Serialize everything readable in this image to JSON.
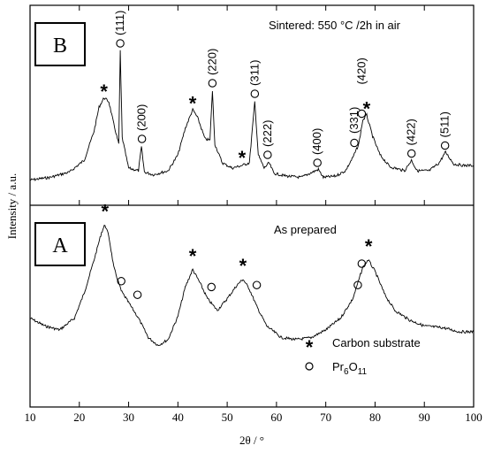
{
  "chart_data": {
    "type": "line",
    "xlabel": "2θ / °",
    "ylabel": "Intensity / a.u.",
    "xlim": [
      10,
      100
    ],
    "x_ticks": [
      10,
      20,
      30,
      40,
      50,
      60,
      70,
      80,
      90,
      100
    ],
    "panels": [
      {
        "id": "B",
        "letter": "B",
        "annotation": "Sintered: 550 °C /2h in air",
        "series": [
          {
            "points": [
              [
                10,
                0.03
              ],
              [
                14,
                0.05
              ],
              [
                18,
                0.09
              ],
              [
                21,
                0.18
              ],
              [
                23,
                0.4
              ],
              [
                24,
                0.58
              ],
              [
                25,
                0.65
              ],
              [
                26,
                0.62
              ],
              [
                27,
                0.45
              ],
              [
                28.0,
                0.3
              ],
              [
                28.3,
                1.0
              ],
              [
                28.7,
                0.35
              ],
              [
                30,
                0.12
              ],
              [
                32,
                0.1
              ],
              [
                32.6,
                0.28
              ],
              [
                33.2,
                0.09
              ],
              [
                35,
                0.07
              ],
              [
                38,
                0.1
              ],
              [
                40,
                0.22
              ],
              [
                41.5,
                0.42
              ],
              [
                43,
                0.56
              ],
              [
                44,
                0.5
              ],
              [
                45.5,
                0.34
              ],
              [
                46.5,
                0.33
              ],
              [
                47.0,
                0.7
              ],
              [
                47.5,
                0.3
              ],
              [
                49,
                0.16
              ],
              [
                51,
                0.12
              ],
              [
                53,
                0.14
              ],
              [
                54.5,
                0.16
              ],
              [
                55.6,
                0.62
              ],
              [
                56.3,
                0.22
              ],
              [
                57.5,
                0.12
              ],
              [
                58.5,
                0.16
              ],
              [
                59.5,
                0.08
              ],
              [
                62,
                0.06
              ],
              [
                65,
                0.05
              ],
              [
                68.5,
                0.11
              ],
              [
                69.5,
                0.05
              ],
              [
                72,
                0.06
              ],
              [
                74,
                0.1
              ],
              [
                75.5,
                0.2
              ],
              [
                76.7,
                0.3
              ],
              [
                77.5,
                0.48
              ],
              [
                78.3,
                0.52
              ],
              [
                79.5,
                0.36
              ],
              [
                81,
                0.22
              ],
              [
                83,
                0.13
              ],
              [
                86,
                0.1
              ],
              [
                87.4,
                0.18
              ],
              [
                88.5,
                0.1
              ],
              [
                91,
                0.1
              ],
              [
                93,
                0.16
              ],
              [
                94.3,
                0.24
              ],
              [
                96,
                0.15
              ],
              [
                98,
                0.14
              ],
              [
                100,
                0.14
              ]
            ]
          }
        ],
        "stars": [
          [
            25.0,
            0.7
          ],
          [
            43.0,
            0.61
          ],
          [
            53.0,
            0.2
          ],
          [
            78.3,
            0.57
          ]
        ],
        "circles": [
          [
            28.3,
            1.06
          ],
          [
            32.7,
            0.34
          ],
          [
            47.0,
            0.76
          ],
          [
            55.6,
            0.68
          ],
          [
            58.2,
            0.22
          ],
          [
            68.3,
            0.16
          ],
          [
            75.8,
            0.31
          ],
          [
            77.3,
            0.53
          ],
          [
            87.4,
            0.23
          ],
          [
            94.2,
            0.29
          ]
        ],
        "hkl_labels": [
          {
            "text": "(111)",
            "x": 28.3,
            "y": 1.12
          },
          {
            "text": "(200)",
            "x": 32.7,
            "y": 0.4
          },
          {
            "text": "(220)",
            "x": 47.0,
            "y": 0.82
          },
          {
            "text": "(311)",
            "x": 55.6,
            "y": 0.74
          },
          {
            "text": "(222)",
            "x": 58.2,
            "y": 0.28
          },
          {
            "text": "(400)",
            "x": 68.3,
            "y": 0.22
          },
          {
            "text": "(331)",
            "x": 75.8,
            "y": 0.38
          },
          {
            "text": "(420)",
            "x": 77.3,
            "y": 0.75
          },
          {
            "text": "(422)",
            "x": 87.4,
            "y": 0.29
          },
          {
            "text": "(511)",
            "x": 94.2,
            "y": 0.35
          }
        ]
      },
      {
        "id": "A",
        "letter": "A",
        "annotation": "As prepared",
        "series": [
          {
            "points": [
              [
                10,
                0.32
              ],
              [
                13,
                0.28
              ],
              [
                16,
                0.26
              ],
              [
                19,
                0.32
              ],
              [
                21,
                0.45
              ],
              [
                23,
                0.62
              ],
              [
                24.5,
                0.76
              ],
              [
                25.2,
                0.8
              ],
              [
                26,
                0.74
              ],
              [
                27,
                0.58
              ],
              [
                28.5,
                0.46
              ],
              [
                30,
                0.4
              ],
              [
                32,
                0.32
              ],
              [
                34,
                0.22
              ],
              [
                36,
                0.18
              ],
              [
                38,
                0.21
              ],
              [
                40,
                0.33
              ],
              [
                41.5,
                0.48
              ],
              [
                43,
                0.57
              ],
              [
                44.5,
                0.5
              ],
              [
                46,
                0.42
              ],
              [
                48,
                0.36
              ],
              [
                50,
                0.42
              ],
              [
                52,
                0.49
              ],
              [
                53.2,
                0.52
              ],
              [
                54.5,
                0.47
              ],
              [
                56,
                0.38
              ],
              [
                58,
                0.28
              ],
              [
                61,
                0.22
              ],
              [
                64,
                0.21
              ],
              [
                67,
                0.22
              ],
              [
                70,
                0.26
              ],
              [
                73,
                0.32
              ],
              [
                75.5,
                0.42
              ],
              [
                77.5,
                0.58
              ],
              [
                78.6,
                0.62
              ],
              [
                80,
                0.56
              ],
              [
                82,
                0.44
              ],
              [
                84,
                0.36
              ],
              [
                87,
                0.31
              ],
              [
                90,
                0.28
              ],
              [
                94,
                0.27
              ],
              [
                97,
                0.25
              ],
              [
                100,
                0.25
              ]
            ]
          }
        ],
        "stars": [
          [
            25.2,
            0.87
          ],
          [
            43.0,
            0.64
          ],
          [
            53.2,
            0.59
          ],
          [
            78.7,
            0.69
          ]
        ],
        "circles": [
          [
            28.5,
            0.51
          ],
          [
            31.8,
            0.44
          ],
          [
            46.8,
            0.48
          ],
          [
            56.0,
            0.49
          ],
          [
            76.5,
            0.49
          ],
          [
            77.3,
            0.6
          ]
        ]
      }
    ],
    "legend": {
      "items": [
        {
          "symbol": "*",
          "label": "Carbon substrate"
        },
        {
          "symbol": "o",
          "label": "Pr",
          "sub": "6",
          "label2": "O",
          "sub2": "11"
        }
      ]
    }
  }
}
